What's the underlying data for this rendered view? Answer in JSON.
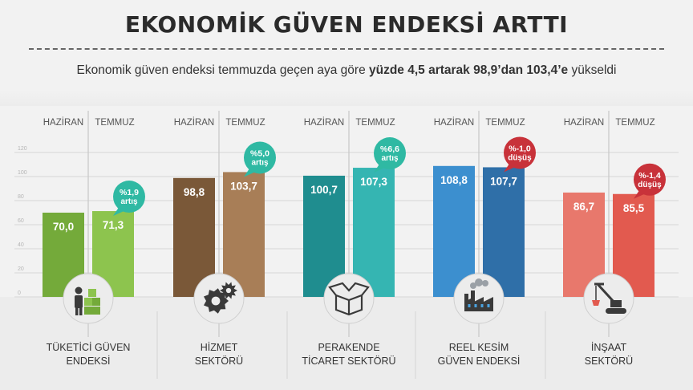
{
  "title": "EKONOMİK GÜVEN ENDEKSİ ARTTI",
  "subtitle": {
    "prefix": "Ekonomik güven endeksi temmuzda geçen aya göre ",
    "bold": "yüzde 4,5 artarak 98,9’dan 103,4’e",
    "suffix": " yükseldi"
  },
  "chart_data": {
    "type": "bar",
    "ylim": [
      0,
      120
    ],
    "yticks": [
      "0",
      "20",
      "40",
      "60",
      "80",
      "100",
      "120"
    ],
    "series_labels": [
      "HAZİRAN",
      "TEMMUZ"
    ],
    "groups": [
      {
        "name": "TÜKETİCİ GÜVEN\nENDEKSİ",
        "icon": "consumer-icon",
        "values": [
          70.0,
          71.3
        ],
        "value_labels": [
          "70,0",
          "71,3"
        ],
        "change": "%1,9\nartış",
        "change_type": "up",
        "colors": [
          "#74aa3a",
          "#8dc44e"
        ]
      },
      {
        "name": "HİZMET\nSEKTÖRÜ",
        "icon": "gears-icon",
        "values": [
          98.8,
          103.7
        ],
        "value_labels": [
          "98,8",
          "103,7"
        ],
        "change": "%5,0\nartış",
        "change_type": "up",
        "colors": [
          "#7a5838",
          "#a87e57"
        ]
      },
      {
        "name": "PERAKENDE\nTİCARET SEKTÖRÜ",
        "icon": "box-icon",
        "values": [
          100.7,
          107.3
        ],
        "value_labels": [
          "100,7",
          "107,3"
        ],
        "change": "%6,6\nartış",
        "change_type": "up",
        "colors": [
          "#1f8d8f",
          "#35b5b2"
        ]
      },
      {
        "name": "REEL KESİM\nGÜVEN ENDEKSİ",
        "icon": "factory-icon",
        "values": [
          108.8,
          107.7
        ],
        "value_labels": [
          "108,8",
          "107,7"
        ],
        "change": "%-1,0\ndüşüş",
        "change_type": "down",
        "colors": [
          "#3c8fcf",
          "#2f6fa8"
        ]
      },
      {
        "name": "İNŞAAT\nSEKTÖRÜ",
        "icon": "crane-icon",
        "values": [
          86.7,
          85.5
        ],
        "value_labels": [
          "86,7",
          "85,5"
        ],
        "change": "%-1,4\ndüşüş",
        "change_type": "down",
        "colors": [
          "#e8786c",
          "#e25a4f"
        ]
      }
    ],
    "badge_colors": {
      "up": "#2fb9a3",
      "down": "#c8323a"
    }
  }
}
